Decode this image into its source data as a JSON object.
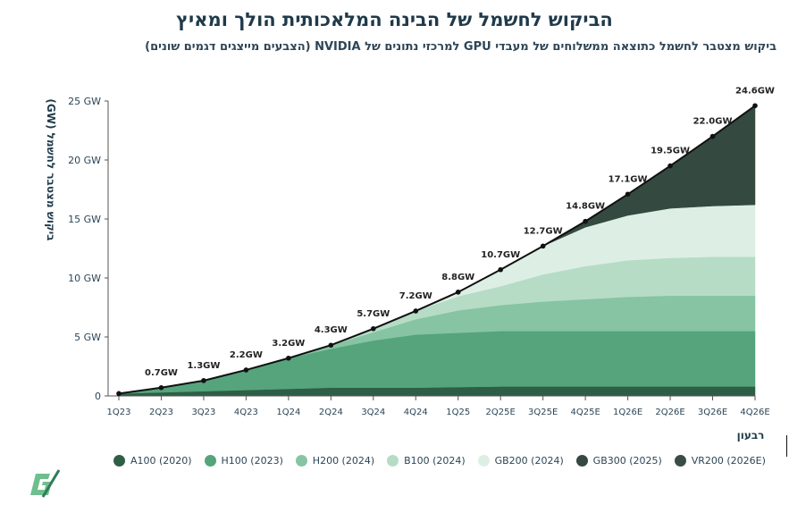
{
  "chart_data": {
    "type": "area",
    "title": "הביקוש לחשמל של הבינה המלאכותית הולך ומאיץ",
    "subtitle": "ביקוש מצטבר לחשמל כתוצאה ממשלוחים של מעבדי GPU למרכזי נתונים של NVIDIA (הצבעים מייצגים דגמים שונים)",
    "xlabel": "רבעון",
    "ylabel": "ביקוש מצטבר לחשמל (GW)",
    "ylim": [
      0,
      25
    ],
    "yticks": [
      {
        "value": 0,
        "label": "0"
      },
      {
        "value": 5,
        "label": "5 GW"
      },
      {
        "value": 10,
        "label": "10 GW"
      },
      {
        "value": 15,
        "label": "15 GW"
      },
      {
        "value": 20,
        "label": "20 GW"
      },
      {
        "value": 25,
        "label": "25 GW"
      }
    ],
    "categories": [
      "1Q23",
      "2Q23",
      "3Q23",
      "4Q23",
      "1Q24",
      "2Q24",
      "3Q24",
      "4Q24",
      "1Q25",
      "2Q25E",
      "3Q25E",
      "4Q25E",
      "1Q26E",
      "2Q26E",
      "3Q26E",
      "4Q26E"
    ],
    "total": [
      0.2,
      0.7,
      1.3,
      2.2,
      3.2,
      4.3,
      5.7,
      7.2,
      8.8,
      10.7,
      12.7,
      14.8,
      17.1,
      19.5,
      22.0,
      24.6
    ],
    "total_labels": [
      "",
      "0.7GW",
      "1.3GW",
      "2.2GW",
      "3.2GW",
      "4.3GW",
      "5.7GW",
      "7.2GW",
      "8.8GW",
      "10.7GW",
      "12.7GW",
      "14.8GW",
      "17.1GW",
      "19.5GW",
      "22.0GW",
      "24.6GW"
    ],
    "series": [
      {
        "name": "A100 (2020)",
        "color": "#2e5e46",
        "values": [
          0.2,
          0.3,
          0.4,
          0.5,
          0.6,
          0.7,
          0.7,
          0.7,
          0.75,
          0.8,
          0.8,
          0.8,
          0.8,
          0.8,
          0.8,
          0.8
        ]
      },
      {
        "name": "H100 (2023)",
        "color": "#55a47c",
        "values": [
          0.0,
          0.4,
          0.9,
          1.7,
          2.6,
          3.3,
          4.0,
          4.5,
          4.6,
          4.7,
          4.7,
          4.7,
          4.7,
          4.7,
          4.7,
          4.7
        ]
      },
      {
        "name": "H200 (2024)",
        "color": "#86c4a3",
        "values": [
          0.0,
          0.0,
          0.0,
          0.0,
          0.0,
          0.3,
          0.7,
          1.3,
          1.9,
          2.2,
          2.5,
          2.7,
          2.9,
          3.0,
          3.0,
          3.0
        ]
      },
      {
        "name": "B100 (2024)",
        "color": "#b6dcc6",
        "values": [
          0.0,
          0.0,
          0.0,
          0.0,
          0.0,
          0.0,
          0.3,
          0.7,
          1.2,
          1.6,
          2.3,
          2.8,
          3.1,
          3.2,
          3.3,
          3.3
        ]
      },
      {
        "name": "GB200 (2024)",
        "color": "#ddefe4",
        "values": [
          0.0,
          0.0,
          0.0,
          0.0,
          0.0,
          0.0,
          0.0,
          0.0,
          0.35,
          1.4,
          2.4,
          3.3,
          3.8,
          4.2,
          4.3,
          4.4
        ]
      },
      {
        "name": "GB300 (2025)",
        "color": "#34493f",
        "values": [
          0.0,
          0.0,
          0.0,
          0.0,
          0.0,
          0.0,
          0.0,
          0.0,
          0.0,
          0.0,
          0.0,
          0.5,
          1.8,
          3.6,
          5.9,
          8.4
        ]
      },
      {
        "name": "VR200 (2026E)",
        "color": "#3a4d44",
        "values": [
          0.0,
          0.0,
          0.0,
          0.0,
          0.0,
          0.0,
          0.0,
          0.0,
          0.0,
          0.0,
          0.0,
          0.0,
          0.0,
          0.0,
          0.0,
          0.0
        ]
      }
    ],
    "legend": [
      "A100 (2020)",
      "H100 (2023)",
      "H200 (2024)",
      "B100 (2024)",
      "GB200 (2024)",
      "GB300 (2025)",
      "VR200 (2026E)"
    ],
    "legend_position": "bottom",
    "line_color": "#111111",
    "grid": false
  }
}
